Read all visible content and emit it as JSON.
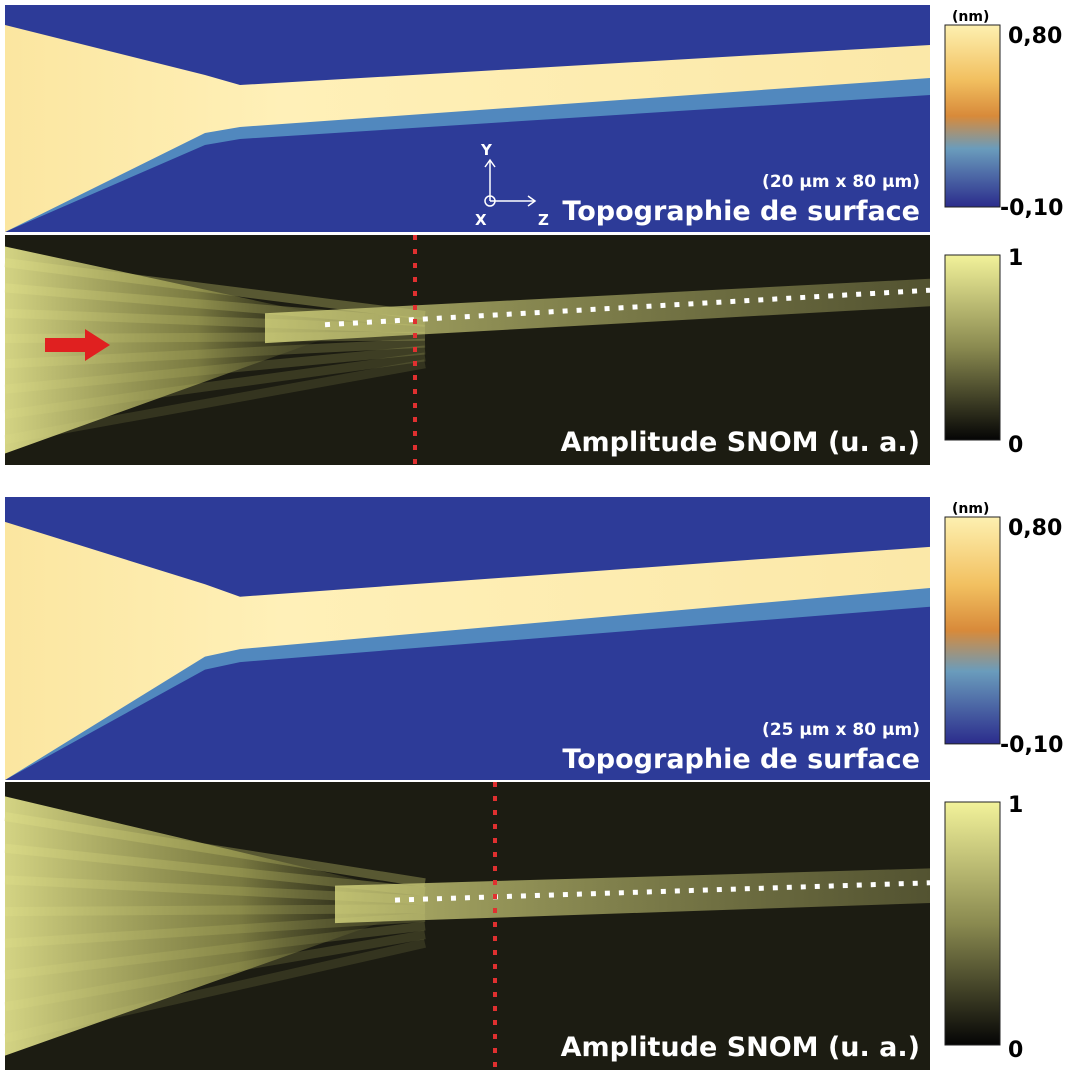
{
  "figures": [
    {
      "topography": {
        "unit": "(nm)",
        "max": "0,80",
        "min": "-0,10",
        "size": "(20 µm x 80 µm)",
        "label": "Topographie de surface",
        "axes": {
          "y": "Y",
          "x": "X",
          "z": "Z"
        }
      },
      "snom": {
        "max": "1",
        "min": "0",
        "label": "Amplitude SNOM (u. a.)"
      }
    },
    {
      "topography": {
        "unit": "(nm)",
        "max": "0,80",
        "min": "-0,10",
        "size": "(25 µm x 80 µm)",
        "label": "Topographie de surface"
      },
      "snom": {
        "max": "1",
        "min": "0",
        "label": "Amplitude SNOM (u. a.)"
      }
    }
  ]
}
